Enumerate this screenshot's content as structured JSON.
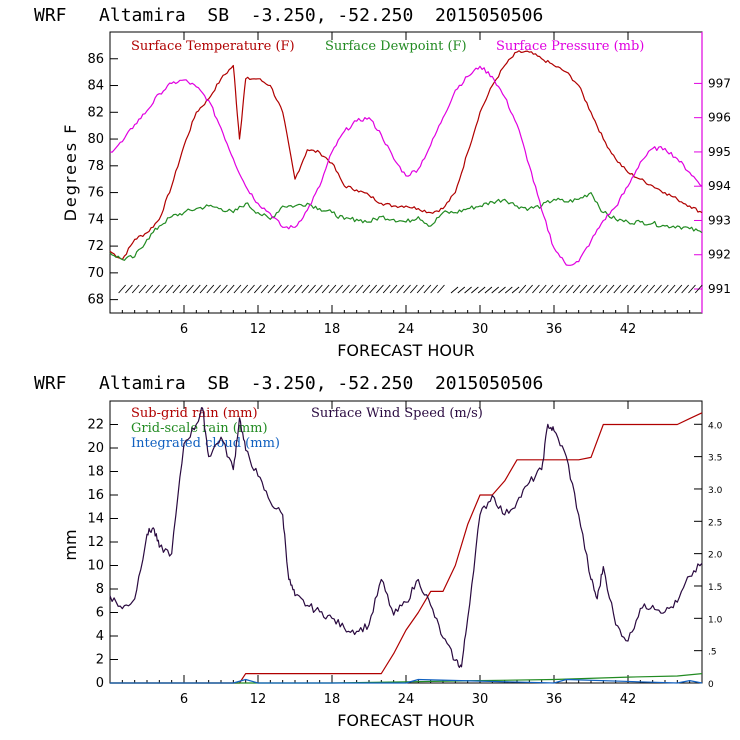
{
  "colors": {
    "temperature": "#b00000",
    "dewpoint": "#228b22",
    "pressure": "#e000e0",
    "subgrid_rain": "#b00000",
    "grid_rain": "#228b22",
    "cloud": "#1060c0",
    "wind": "#2a0a40",
    "right_axis_top": "#e000e0"
  },
  "chart_data": [
    {
      "type": "line",
      "title": "WRF   Altamira  SB  -3.250, -52.250  2015050506",
      "xlabel": "FORECAST HOUR",
      "ylabel": "Degrees F",
      "xlim": [
        0,
        48
      ],
      "ylim": [
        67,
        88
      ],
      "x_ticks": [
        6,
        12,
        18,
        24,
        30,
        36,
        42
      ],
      "y_ticks": [
        68,
        70,
        72,
        74,
        76,
        78,
        80,
        82,
        84,
        86
      ],
      "y2_label": "",
      "y2lim": [
        990.3,
        998.5
      ],
      "y2_ticks": [
        991,
        992,
        993,
        994,
        995,
        996,
        997
      ],
      "series": [
        {
          "name": "Surface Temperature (F)",
          "axis": "left",
          "x": [
            0,
            1,
            2,
            3,
            4,
            5,
            6,
            7,
            8,
            9,
            10,
            10.5,
            11,
            12,
            13,
            14,
            15,
            16,
            17,
            18,
            19,
            20,
            21,
            22,
            23,
            24,
            25,
            26,
            27,
            28,
            29,
            30,
            31,
            32,
            33,
            34,
            35,
            36,
            37,
            38,
            39,
            40,
            41,
            42,
            43,
            44,
            45,
            46,
            47,
            48
          ],
          "values": [
            71.6,
            71.0,
            72.5,
            73.0,
            74.0,
            76.5,
            79.5,
            82.0,
            83.0,
            84.5,
            85.5,
            80.0,
            84.5,
            84.5,
            84.0,
            82.0,
            77.0,
            79.2,
            79.0,
            78.2,
            76.5,
            76.2,
            75.8,
            75.2,
            75.0,
            75.0,
            74.8,
            74.5,
            74.8,
            76.0,
            79.0,
            82.0,
            84.0,
            85.5,
            86.5,
            86.5,
            86.0,
            85.5,
            85.0,
            84.0,
            82.0,
            80.0,
            78.5,
            77.5,
            77.0,
            76.5,
            76.0,
            75.5,
            75.0,
            74.5
          ]
        },
        {
          "name": "Surface Dewpoint (F)",
          "axis": "left",
          "x": [
            0,
            1,
            2,
            3,
            4,
            5,
            6,
            7,
            8,
            9,
            10,
            11,
            12,
            13,
            14,
            15,
            16,
            17,
            18,
            19,
            20,
            21,
            22,
            23,
            24,
            25,
            26,
            27,
            28,
            29,
            30,
            31,
            32,
            33,
            34,
            35,
            36,
            37,
            38,
            39,
            40,
            41,
            42,
            43,
            44,
            45,
            46,
            47,
            48
          ],
          "values": [
            71.5,
            71.0,
            71.2,
            72.5,
            73.5,
            74.2,
            74.5,
            74.8,
            75.0,
            74.8,
            74.5,
            75.2,
            74.5,
            74.0,
            75.0,
            75.0,
            75.2,
            74.8,
            74.5,
            74.0,
            74.0,
            73.8,
            74.2,
            74.0,
            73.8,
            74.2,
            73.5,
            74.5,
            74.5,
            74.8,
            75.0,
            75.3,
            75.5,
            75.0,
            74.8,
            75.0,
            75.5,
            75.3,
            75.5,
            76.0,
            74.5,
            74.0,
            73.8,
            73.8,
            73.7,
            73.5,
            73.5,
            73.3,
            73.0
          ]
        },
        {
          "name": "Surface Pressure (mb)",
          "axis": "right",
          "x": [
            0,
            1,
            2,
            3,
            4,
            5,
            6,
            7,
            8,
            9,
            10,
            11,
            12,
            13,
            14,
            15,
            16,
            17,
            18,
            19,
            20,
            21,
            22,
            23,
            24,
            25,
            26,
            27,
            28,
            29,
            30,
            31,
            32,
            33,
            34,
            35,
            36,
            37,
            38,
            39,
            40,
            41,
            42,
            43,
            44,
            45,
            46,
            47,
            48
          ],
          "values": [
            995.0,
            995.3,
            995.8,
            996.2,
            996.7,
            997.0,
            997.1,
            996.9,
            996.5,
            995.7,
            994.8,
            994.0,
            993.5,
            993.2,
            992.8,
            992.8,
            993.3,
            994.0,
            995.0,
            995.6,
            995.9,
            996.0,
            995.5,
            994.8,
            994.3,
            994.5,
            995.2,
            996.0,
            996.8,
            997.2,
            997.5,
            997.2,
            996.6,
            995.8,
            994.6,
            993.3,
            992.2,
            991.7,
            991.8,
            992.4,
            993.0,
            993.4,
            994.0,
            994.7,
            995.1,
            995.1,
            994.8,
            994.4,
            994.0
          ]
        }
      ],
      "wind_barbs_label": ""
    },
    {
      "type": "line",
      "title": "WRF   Altamira  SB  -3.250, -52.250  2015050506",
      "xlabel": "FORECAST HOUR",
      "ylabel": "mm",
      "xlim": [
        0,
        48
      ],
      "ylim": [
        0,
        24
      ],
      "x_ticks": [
        6,
        12,
        18,
        24,
        30,
        36,
        42
      ],
      "y_ticks": [
        0,
        2,
        4,
        6,
        8,
        10,
        12,
        14,
        16,
        18,
        20,
        22
      ],
      "y2lim": [
        0,
        4.36
      ],
      "y2_ticks": [
        0,
        0.5,
        1.0,
        1.5,
        2.0,
        2.5,
        3.0,
        3.5,
        4.0
      ],
      "y2_tick_labels": [
        "0",
        ".5",
        "1.0",
        "1.5",
        "2.0",
        "2.5",
        "3.0",
        "3.5",
        "4.0"
      ],
      "series": [
        {
          "name": "Sub-grid rain (mm)",
          "axis": "left",
          "x": [
            0,
            10.5,
            11,
            22,
            23,
            24,
            25,
            26,
            27,
            28,
            29,
            30,
            31,
            32,
            33,
            34,
            35,
            36,
            37,
            38,
            39,
            40,
            41,
            42,
            43,
            44,
            45,
            46,
            47,
            48
          ],
          "values": [
            0,
            0,
            0.8,
            0.8,
            2.5,
            4.5,
            6.0,
            7.8,
            7.8,
            10.0,
            13.5,
            16.0,
            16.0,
            17.2,
            19.0,
            19.0,
            19.0,
            19.0,
            19.0,
            19.0,
            19.2,
            22.0,
            22.0,
            22.0,
            22.0,
            22.0,
            22.0,
            22.0,
            22.5,
            23.0
          ]
        },
        {
          "name": "Grid-scale rain (mm)",
          "axis": "left",
          "x": [
            0,
            12,
            18,
            24,
            30,
            36,
            42,
            46,
            48
          ],
          "values": [
            0,
            0,
            0,
            0.1,
            0.2,
            0.3,
            0.5,
            0.6,
            0.8
          ]
        },
        {
          "name": "Integrated cloud (mm)",
          "axis": "left",
          "x": [
            0,
            10,
            11,
            12,
            24,
            25,
            36,
            37,
            46,
            47,
            48
          ],
          "values": [
            0,
            0,
            0.3,
            0,
            0,
            0.3,
            0,
            0.3,
            0,
            0.2,
            0
          ]
        },
        {
          "name": "Surface Wind Speed (m/s)",
          "axis": "right",
          "x": [
            0,
            1,
            2,
            3,
            3.5,
            4,
            5,
            6,
            7,
            7.5,
            8,
            9,
            10,
            10.5,
            11,
            12,
            13,
            14,
            14.5,
            15,
            16,
            17,
            18,
            19,
            20,
            21,
            22,
            23,
            24,
            25,
            26,
            27,
            28,
            28.5,
            29,
            30,
            31,
            32,
            33,
            34,
            35,
            35.5,
            36,
            37,
            38,
            39,
            39.5,
            40,
            41,
            42,
            43,
            44,
            45,
            46,
            47,
            48
          ],
          "values": [
            1.35,
            1.15,
            1.3,
            2.3,
            2.4,
            2.1,
            2.0,
            3.7,
            4.0,
            4.25,
            3.5,
            3.8,
            3.3,
            4.1,
            3.6,
            3.2,
            2.8,
            2.6,
            1.6,
            1.35,
            1.2,
            1.1,
            1.0,
            0.85,
            0.8,
            0.9,
            1.6,
            1.05,
            1.25,
            1.6,
            1.2,
            0.7,
            0.35,
            0.25,
            1.0,
            2.6,
            2.9,
            2.6,
            2.8,
            3.1,
            3.3,
            4.0,
            3.9,
            3.5,
            2.6,
            1.6,
            1.3,
            1.8,
            0.9,
            0.65,
            1.15,
            1.2,
            1.1,
            1.25,
            1.65,
            1.85
          ]
        }
      ]
    }
  ],
  "chart1": {
    "title": "WRF   Altamira  SB  -3.250, -52.250  2015050506",
    "legend_temperature": "Surface Temperature (F)",
    "legend_dewpoint": "Surface Dewpoint (F)",
    "legend_pressure": "Surface Pressure (mb)",
    "ylabel": "Degrees F",
    "xlabel": "FORECAST HOUR"
  },
  "chart2": {
    "title": "WRF   Altamira  SB  -3.250, -52.250  2015050506",
    "legend_subgrid": "Sub-grid rain (mm)",
    "legend_wind": "Surface Wind Speed (m/s)",
    "legend_grid": "Grid-scale rain (mm)",
    "legend_cloud": "Integrated cloud (mm)",
    "ylabel": "mm",
    "xlabel": "FORECAST HOUR"
  }
}
